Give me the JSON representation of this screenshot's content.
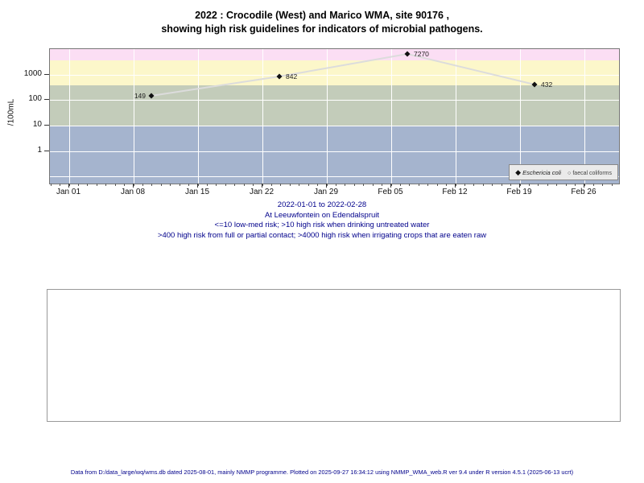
{
  "title": {
    "line1": "2022 : Crocodile (West) and Marico WMA, site 90176 ,",
    "line2": "showing high risk guidelines for indicators of microbial pathogens."
  },
  "chart_data": {
    "type": "line",
    "title": "2022 : Crocodile (West) and Marico WMA, site 90176 , showing high risk guidelines for indicators of microbial pathogens.",
    "ylabel": "/100mL",
    "yscale": "log",
    "ylim": [
      0.07,
      10000
    ],
    "y_ticks": [
      "1000",
      "100",
      "10",
      "1"
    ],
    "x_ticks": [
      "Jan 01",
      "Jan 08",
      "Jan 15",
      "Jan 22",
      "Jan 29",
      "Feb 05",
      "Feb 12",
      "Feb 19",
      "Feb 26"
    ],
    "x_range": [
      "2022-01-01",
      "2022-02-28"
    ],
    "grid": true,
    "legend_position": "bottom-right",
    "series": [
      {
        "name": "Eschericia coli",
        "marker": "filled-diamond",
        "points": [
          {
            "date": "2022-01-10",
            "value": 149
          },
          {
            "date": "2022-01-24",
            "value": 842
          },
          {
            "date": "2022-02-07",
            "value": 7270
          },
          {
            "date": "2022-02-21",
            "value": 432
          }
        ]
      },
      {
        "name": "faecal coliforms",
        "marker": "open-circle",
        "points": []
      }
    ],
    "risk_bands": [
      {
        "level": ">4000",
        "description": "high risk when irrigating crops that are eaten raw",
        "color": "#FBDEF4"
      },
      {
        "level": "400-4000",
        "description": "high risk from full or partial contact",
        "color": "#FCF7CA"
      },
      {
        "level": "10-400",
        "description": "high risk when drinking untreated water",
        "color": "#C3CCBA"
      },
      {
        "level": "<=10",
        "description": "low-med risk",
        "color": "#A5B4CE"
      }
    ]
  },
  "legend": {
    "items": [
      {
        "label": "Eschericia coli",
        "marker": "filled-diamond"
      },
      {
        "label": "faecal coliforms",
        "marker": "open-circle"
      }
    ]
  },
  "subtitle": {
    "period": "2022-01-01 to 2022-02-28",
    "location": "At Leeuwfontein on Edendalspruit",
    "guideline_line1": "<=10 low-med risk; >10 high risk when drinking untreated water",
    "guideline_line2": ">400 high risk from full or partial contact; >4000 high risk when irrigating crops that are eaten raw"
  },
  "notes_box": {
    "content": ""
  },
  "footer": {
    "text": "Data from D:/data_large/wq/wms.db dated 2025-08-01, mainly NMMP programme. Plotted on 2025-09-27 16:34:12 using NMMP_WMA_web.R ver 9.4 under R version 4.5.1 (2025-06-13 ucrt)"
  }
}
